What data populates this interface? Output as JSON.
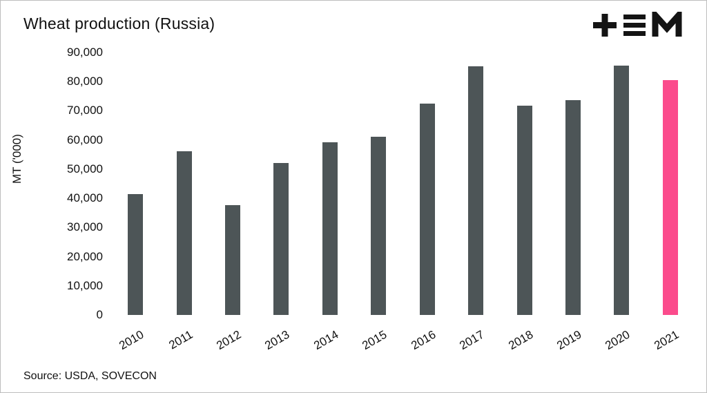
{
  "title": "Wheat production (Russia)",
  "source": "Source: USDA, SOVECON",
  "logo_name": "tem-logo",
  "colors": {
    "bar": "#4d5557",
    "highlight": "#fb4b8c",
    "text": "#111111"
  },
  "chart_data": {
    "type": "bar",
    "title": "Wheat production (Russia)",
    "categories": [
      "2010",
      "2011",
      "2012",
      "2013",
      "2014",
      "2015",
      "2016",
      "2017",
      "2018",
      "2019",
      "2020",
      "2021"
    ],
    "values": [
      41500,
      56200,
      37700,
      52100,
      59100,
      61000,
      72500,
      85200,
      71700,
      73600,
      85400,
      80600
    ],
    "xlabel": "",
    "ylabel": "MT ('000)",
    "ylim": [
      0,
      90000
    ],
    "yticks": [
      0,
      10000,
      20000,
      30000,
      40000,
      50000,
      60000,
      70000,
      80000,
      90000
    ],
    "grid": false,
    "legend": "none",
    "bar_color": "#4d5557",
    "highlight_color": "#fb4b8c",
    "highlight_index": 11
  }
}
